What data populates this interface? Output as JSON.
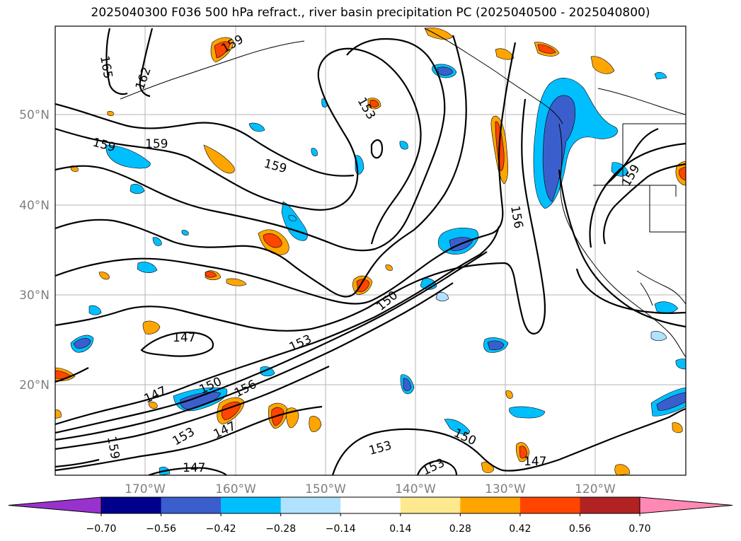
{
  "title": "2025040300 F036 500 hPa refract., river basin precipitation PC (2025040500 - 2025040800)",
  "map": {
    "lat_labels": [
      "50°N",
      "40°N",
      "30°N",
      "20°N"
    ],
    "lon_labels": [
      "170°W",
      "160°W",
      "150°W",
      "140°W",
      "130°W",
      "120°W"
    ],
    "contour_labels": [
      "165",
      "162",
      "159",
      "159",
      "159",
      "159",
      "153",
      "159",
      "156",
      "150",
      "153",
      "147",
      "147",
      "150",
      "156",
      "153",
      "159",
      "147",
      "147",
      "153",
      "150",
      "153",
      "147"
    ]
  },
  "colorbar": {
    "ticks": [
      "−0.70",
      "−0.56",
      "−0.42",
      "−0.28",
      "−0.14",
      "0.14",
      "0.28",
      "0.42",
      "0.56",
      "0.70"
    ],
    "colors": [
      "#9932cc",
      "#00008b",
      "#3a5fcd",
      "#00bfff",
      "#b0e2ff",
      "#ffffff",
      "#ffe98f",
      "#ffa500",
      "#ff4500",
      "#b22222",
      "#ff89b4"
    ]
  }
}
